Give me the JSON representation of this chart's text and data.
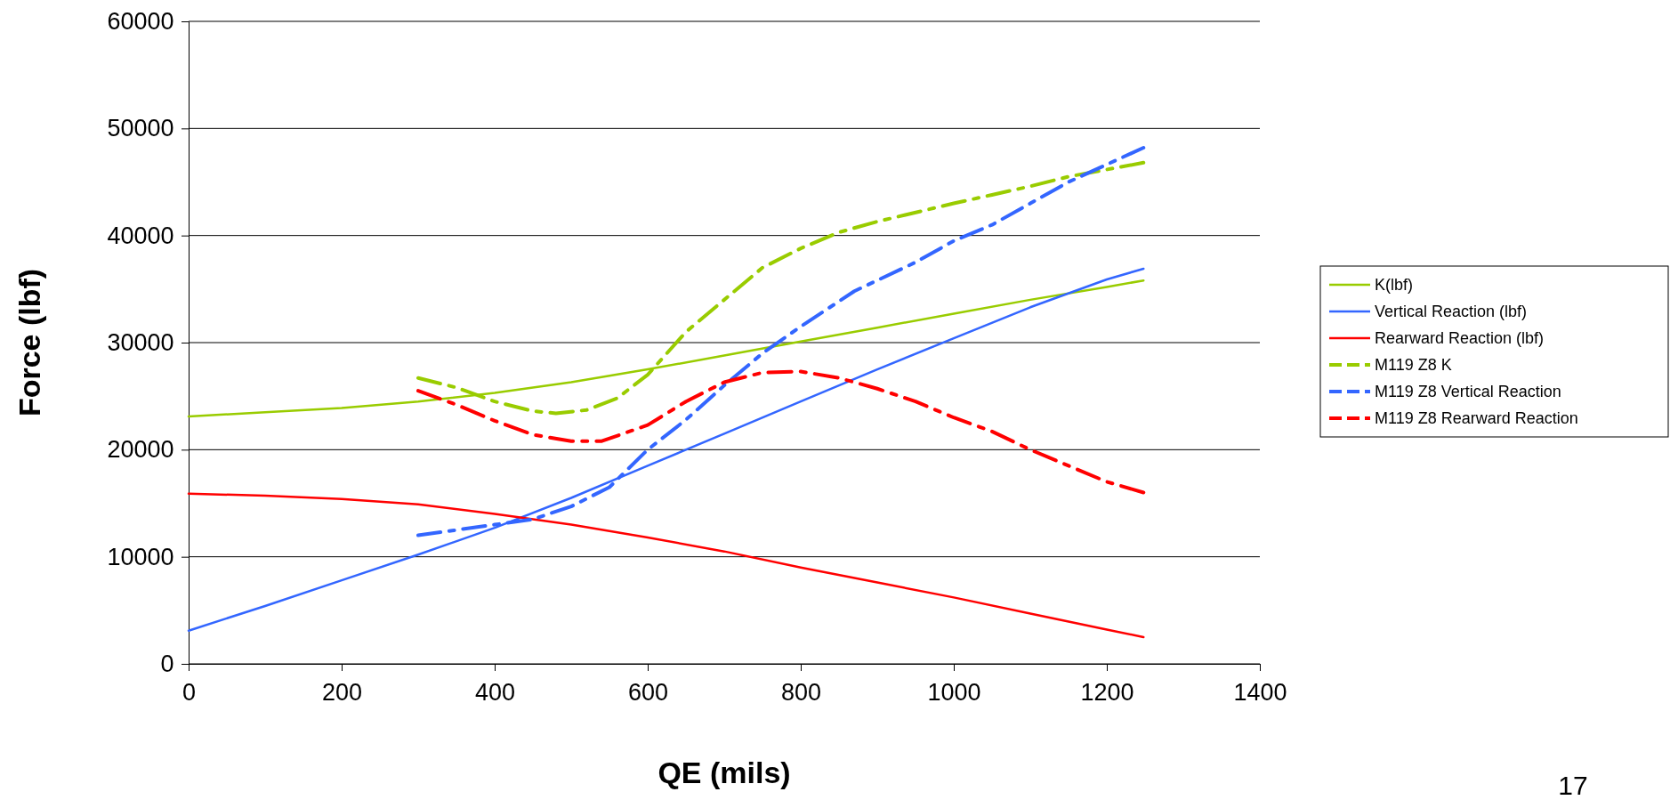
{
  "chart_data": {
    "type": "line",
    "xlabel": "QE (mils)",
    "ylabel": "Force (lbf)",
    "xlim": [
      0,
      1400
    ],
    "xticks": [
      0,
      200,
      400,
      600,
      800,
      1000,
      1200,
      1400
    ],
    "ylim": [
      0,
      60000
    ],
    "yticks": [
      0,
      10000,
      20000,
      30000,
      40000,
      50000,
      60000
    ],
    "grid": "y",
    "legend": "right",
    "annotations": [
      "17"
    ],
    "series": [
      {
        "name": "K(lbf)",
        "color": "#99cc00",
        "line_style": "solid",
        "x": [
          0,
          100,
          200,
          300,
          400,
          500,
          600,
          700,
          800,
          900,
          1000,
          1100,
          1200,
          1248
        ],
        "values": [
          23100,
          23500,
          23900,
          24500,
          25300,
          26300,
          27500,
          28800,
          30100,
          31400,
          32700,
          34000,
          35200,
          35800
        ]
      },
      {
        "name": "Vertical Reaction (lbf)",
        "color": "#3366ff",
        "line_style": "solid",
        "x": [
          0,
          100,
          200,
          300,
          400,
          500,
          600,
          700,
          800,
          900,
          1000,
          1100,
          1200,
          1248
        ],
        "values": [
          3100,
          5400,
          7800,
          10200,
          12700,
          15500,
          18500,
          21500,
          24500,
          27500,
          30400,
          33300,
          35900,
          36900
        ]
      },
      {
        "name": "Rearward Reaction (lbf)",
        "color": "#ff0000",
        "line_style": "solid",
        "x": [
          0,
          100,
          200,
          300,
          400,
          500,
          600,
          700,
          800,
          900,
          1000,
          1100,
          1200,
          1248
        ],
        "values": [
          15900,
          15700,
          15400,
          14900,
          14000,
          13000,
          11800,
          10500,
          9000,
          7600,
          6200,
          4700,
          3200,
          2500
        ]
      },
      {
        "name": "M119 Z8 K",
        "color": "#99cc00",
        "line_style": "dashed",
        "x": [
          300,
          350,
          400,
          450,
          480,
          520,
          560,
          600,
          650,
          700,
          750,
          800,
          850,
          900,
          1000,
          1050,
          1100,
          1150,
          1248
        ],
        "values": [
          26700,
          25800,
          24500,
          23600,
          23400,
          23700,
          24800,
          27000,
          31000,
          34000,
          37000,
          38800,
          40300,
          41300,
          43000,
          43800,
          44600,
          45500,
          46800
        ]
      },
      {
        "name": "M119 Z8 Vertical Reaction",
        "color": "#3366ff",
        "line_style": "dashed",
        "x": [
          300,
          400,
          450,
          500,
          550,
          600,
          650,
          700,
          750,
          800,
          870,
          950,
          1000,
          1050,
          1100,
          1150,
          1248
        ],
        "values": [
          12000,
          13000,
          13500,
          14700,
          16500,
          20000,
          22800,
          26000,
          29000,
          31500,
          34800,
          37500,
          39500,
          41000,
          43000,
          45000,
          48200
        ]
      },
      {
        "name": "M119 Z8 Rearward Reaction",
        "color": "#ff0000",
        "line_style": "dashed",
        "x": [
          300,
          350,
          400,
          450,
          500,
          540,
          600,
          650,
          700,
          750,
          800,
          850,
          900,
          950,
          1000,
          1050,
          1100,
          1150,
          1200,
          1248
        ],
        "values": [
          25500,
          24200,
          22700,
          21400,
          20800,
          20800,
          22300,
          24500,
          26300,
          27200,
          27300,
          26700,
          25700,
          24500,
          23000,
          21700,
          20000,
          18500,
          17000,
          16000
        ]
      }
    ]
  }
}
